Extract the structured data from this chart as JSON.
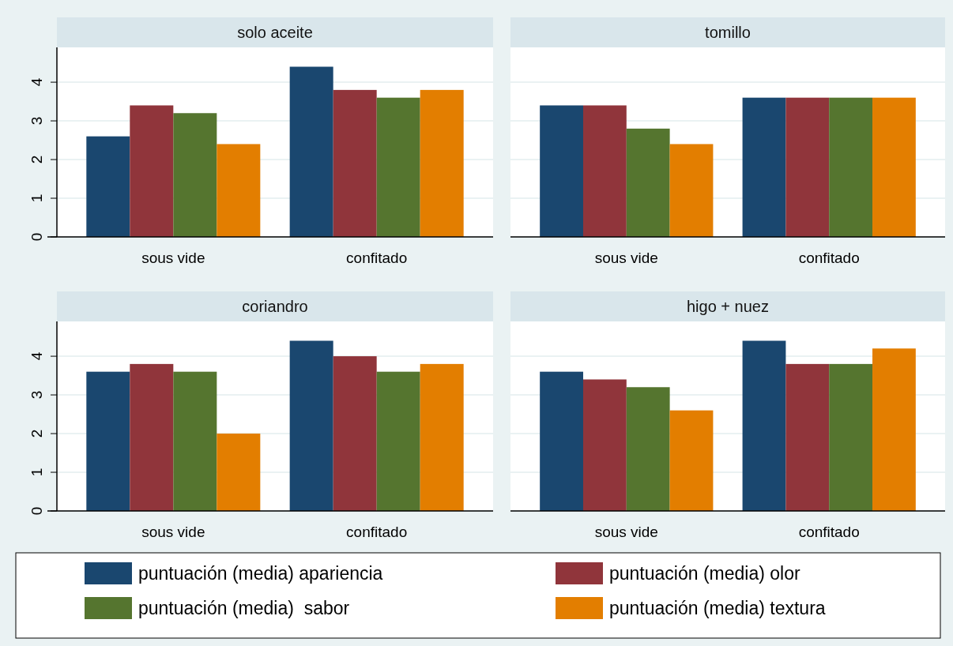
{
  "chart_data": [
    {
      "type": "bar",
      "title": "solo aceite",
      "categories": [
        "sous vide",
        "confitado"
      ],
      "ylim": [
        0,
        4.9
      ],
      "yticks": [
        0,
        1,
        2,
        3,
        4
      ],
      "grid": "y",
      "legend": "bottom",
      "tick_labels": true,
      "series": [
        {
          "name": "puntuación (media) apariencia",
          "color": "#1a476f",
          "values": [
            2.6,
            4.4
          ]
        },
        {
          "name": "puntuación (media) olor",
          "color": "#90353b",
          "values": [
            3.4,
            3.8
          ]
        },
        {
          "name": "puntuación (media)  sabor",
          "color": "#55752f",
          "values": [
            3.2,
            3.6
          ]
        },
        {
          "name": "puntuación (media) textura",
          "color": "#e37e00",
          "values": [
            2.4,
            3.8
          ]
        }
      ]
    },
    {
      "type": "bar",
      "title": "tomillo",
      "categories": [
        "sous vide",
        "confitado"
      ],
      "ylim": [
        0,
        4.9
      ],
      "yticks": [
        0,
        1,
        2,
        3,
        4
      ],
      "grid": "y",
      "tick_labels": "x",
      "series": [
        {
          "color": "#1a476f",
          "values": [
            3.4,
            3.6
          ]
        },
        {
          "color": "#90353b",
          "values": [
            3.4,
            3.6
          ]
        },
        {
          "color": "#55752f",
          "values": [
            2.8,
            3.6
          ]
        },
        {
          "color": "#e37e00",
          "values": [
            2.4,
            3.6
          ]
        }
      ]
    },
    {
      "type": "bar",
      "title": "coriandro",
      "categories": [
        "sous vide",
        "confitado"
      ],
      "ylim": [
        0,
        4.9
      ],
      "yticks": [
        0,
        1,
        2,
        3,
        4
      ],
      "grid": "y",
      "tick_labels": true,
      "series": [
        {
          "color": "#1a476f",
          "values": [
            3.6,
            4.4
          ]
        },
        {
          "color": "#90353b",
          "values": [
            3.8,
            4.0
          ]
        },
        {
          "color": "#55752f",
          "values": [
            3.6,
            3.6
          ]
        },
        {
          "color": "#e37e00",
          "values": [
            2.0,
            3.8
          ]
        }
      ]
    },
    {
      "type": "bar",
      "title": "higo + nuez",
      "categories": [
        "sous vide",
        "confitado"
      ],
      "ylim": [
        0,
        4.9
      ],
      "yticks": [
        0,
        1,
        2,
        3,
        4
      ],
      "grid": "y",
      "tick_labels": "x",
      "series": [
        {
          "color": "#1a476f",
          "values": [
            3.6,
            4.4
          ]
        },
        {
          "color": "#90353b",
          "values": [
            3.4,
            3.8
          ]
        },
        {
          "color": "#55752f",
          "values": [
            3.2,
            3.8
          ]
        },
        {
          "color": "#e37e00",
          "values": [
            2.6,
            4.2
          ]
        }
      ]
    }
  ]
}
